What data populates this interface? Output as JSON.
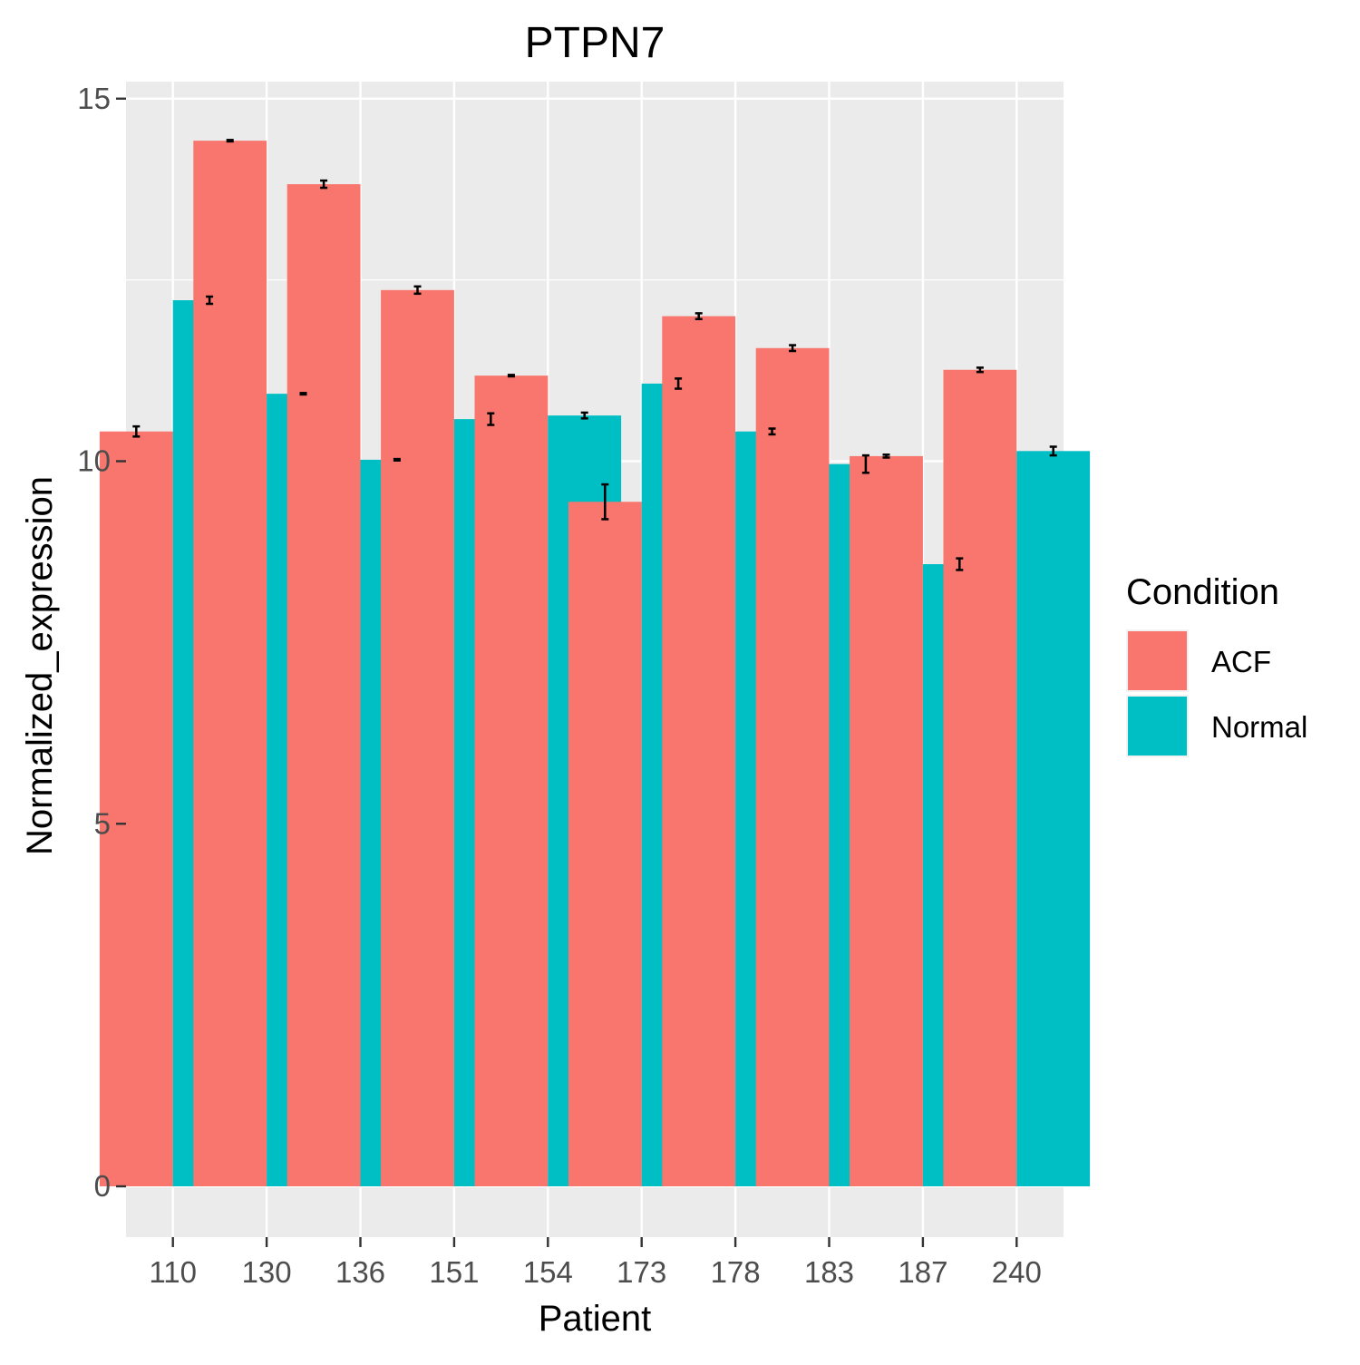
{
  "chart_data": {
    "type": "bar",
    "title": "PTPN7",
    "xlabel": "Patient",
    "ylabel": "Normalized_expression",
    "categories": [
      "110",
      "130",
      "136",
      "151",
      "154",
      "173",
      "178",
      "183",
      "187",
      "240"
    ],
    "series": [
      {
        "name": "ACF",
        "color": "#F8766D",
        "values": [
          10.41,
          14.42,
          13.82,
          12.36,
          11.18,
          9.44,
          12.0,
          11.56,
          10.07,
          11.26
        ],
        "errors": [
          0.07,
          0.01,
          0.05,
          0.05,
          0.01,
          0.24,
          0.04,
          0.04,
          0.02,
          0.03
        ]
      },
      {
        "name": "Normal",
        "color": "#00BFC4",
        "values": [
          12.22,
          10.93,
          10.02,
          10.58,
          10.63,
          11.07,
          10.41,
          9.96,
          8.58,
          10.14
        ],
        "errors": [
          0.05,
          0.01,
          0.01,
          0.08,
          0.04,
          0.07,
          0.04,
          0.12,
          0.08,
          0.06
        ]
      }
    ],
    "y_ticks": [
      0,
      5,
      10,
      15
    ],
    "ylim": [
      -0.7,
      15.3
    ],
    "grid": true,
    "legend": {
      "title": "Condition",
      "position": "right"
    },
    "panel_background": "#EBEBEB",
    "grid_color": "#FFFFFF",
    "error_bar_color": "#000000"
  }
}
